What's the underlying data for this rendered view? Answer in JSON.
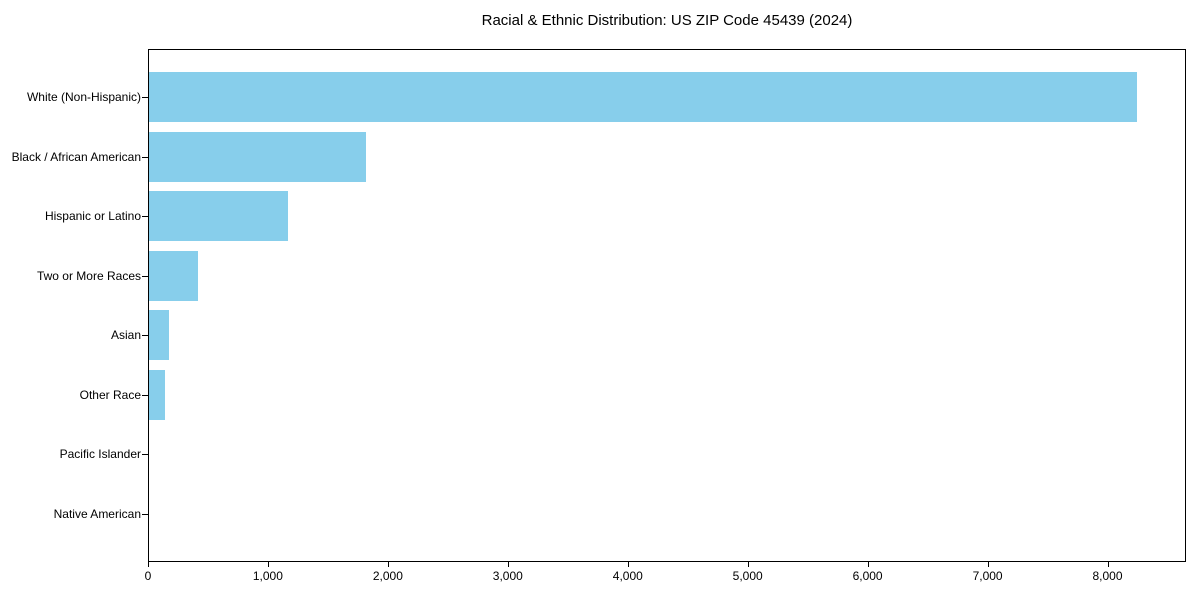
{
  "title": "Racial & Ethnic Distribution: US ZIP Code 45439 (2024)",
  "colors": {
    "bar": "#87CEEB",
    "axis": "#000000",
    "background": "#ffffff",
    "text": "#000000"
  },
  "chart_data": {
    "type": "bar",
    "orientation": "horizontal",
    "title": "Racial & Ethnic Distribution: US ZIP Code 45439 (2024)",
    "categories": [
      "White (Non-Hispanic)",
      "Black / African American",
      "Hispanic or Latino",
      "Two or More Races",
      "Asian",
      "Other Race",
      "Pacific Islander",
      "Native American"
    ],
    "values": [
      8235,
      1805,
      1160,
      410,
      165,
      130,
      0,
      0
    ],
    "xlabel": "",
    "ylabel": "",
    "xlim": [
      0,
      8646
    ],
    "xticks": [
      0,
      1000,
      2000,
      3000,
      4000,
      5000,
      6000,
      7000,
      8000
    ],
    "xtick_labels": [
      "0",
      "1,000",
      "2,000",
      "3,000",
      "4,000",
      "5,000",
      "6,000",
      "7,000",
      "8,000"
    ],
    "grid": false,
    "legend": null,
    "bar_color": "#87CEEB"
  }
}
